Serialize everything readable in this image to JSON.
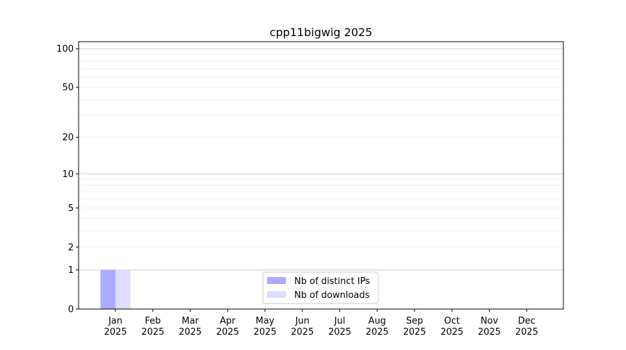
{
  "chart_data": {
    "type": "bar",
    "title": "cpp11bigwig 2025",
    "xlabel": "",
    "ylabel": "",
    "yscale": "symlog (log10(1+y))",
    "ylim": [
      0,
      113
    ],
    "yticks": [
      0,
      1,
      2,
      5,
      10,
      20,
      50,
      100
    ],
    "ytick_labels": [
      "0",
      "1",
      "2",
      "5",
      "10",
      "20",
      "50",
      "100"
    ],
    "categories": [
      "Jan\n2025",
      "Feb\n2025",
      "Mar\n2025",
      "Apr\n2025",
      "May\n2025",
      "Jun\n2025",
      "Jul\n2025",
      "Aug\n2025",
      "Sep\n2025",
      "Oct\n2025",
      "Nov\n2025",
      "Dec\n2025"
    ],
    "grid": true,
    "legend_position": "lower-center",
    "series": [
      {
        "name": "Nb of distinct IPs",
        "color": "#aaaaff",
        "values": [
          1,
          0,
          0,
          0,
          0,
          0,
          0,
          0,
          0,
          0,
          0,
          0
        ]
      },
      {
        "name": "Nb of downloads",
        "color": "#ddddff",
        "values": [
          1,
          0,
          0,
          0,
          0,
          0,
          0,
          0,
          0,
          0,
          0,
          0
        ]
      }
    ]
  }
}
